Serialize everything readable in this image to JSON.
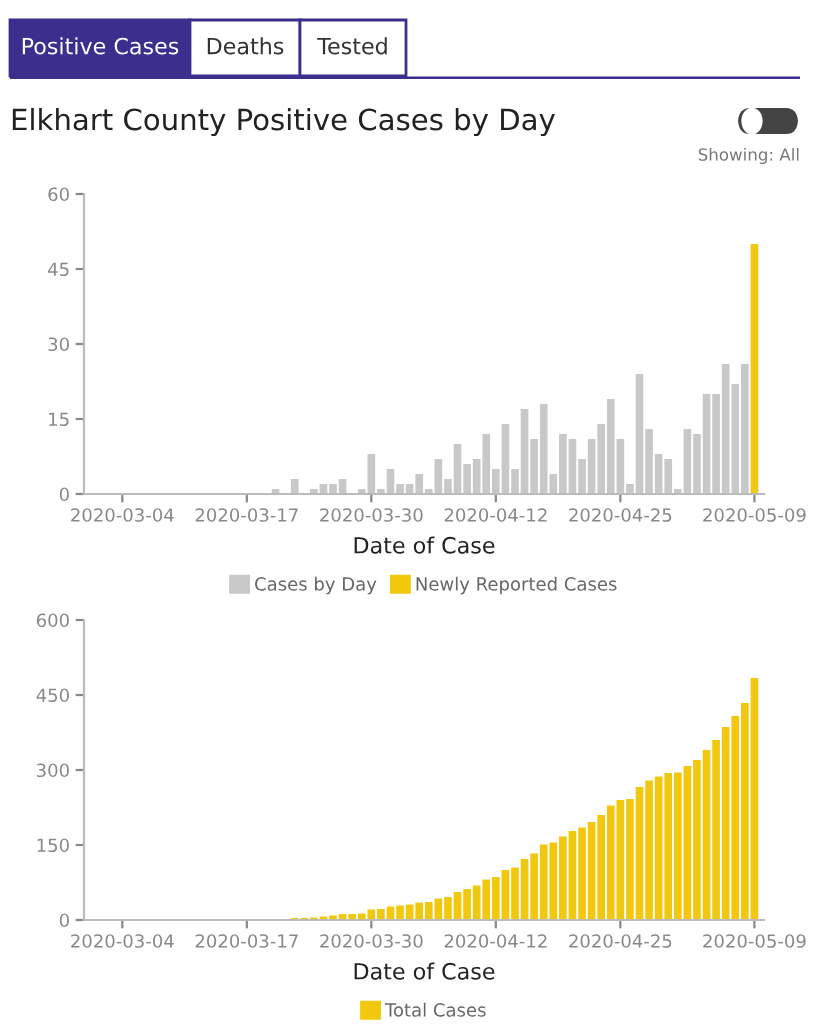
{
  "chart_data": [
    {
      "type": "bar",
      "title": "Elkhart County Positive Cases by Day",
      "annotations": [
        "Positive Cases",
        "Deaths",
        "Tested",
        "Showing: All"
      ],
      "xlabel": "Date of Case",
      "x": [
        "2020-03-20",
        "2020-03-21",
        "2020-03-22",
        "2020-03-23",
        "2020-03-24",
        "2020-03-25",
        "2020-03-26",
        "2020-03-27",
        "2020-03-28",
        "2020-03-29",
        "2020-03-30",
        "2020-03-31",
        "2020-04-01",
        "2020-04-02",
        "2020-04-03",
        "2020-04-04",
        "2020-04-05",
        "2020-04-06",
        "2020-04-07",
        "2020-04-08",
        "2020-04-09",
        "2020-04-10",
        "2020-04-11",
        "2020-04-12",
        "2020-04-13",
        "2020-04-14",
        "2020-04-15",
        "2020-04-16",
        "2020-04-17",
        "2020-04-18",
        "2020-04-19",
        "2020-04-20",
        "2020-04-21",
        "2020-04-22",
        "2020-04-23",
        "2020-04-24",
        "2020-04-25",
        "2020-04-26",
        "2020-04-27",
        "2020-04-28",
        "2020-04-29",
        "2020-04-30",
        "2020-05-01",
        "2020-05-02",
        "2020-05-03",
        "2020-05-04",
        "2020-05-05",
        "2020-05-06",
        "2020-05-07",
        "2020-05-08",
        "2020-05-09"
      ],
      "series": [
        {
          "name": "Cases by Day",
          "color": "#c8c8c8",
          "values": [
            1,
            null,
            3,
            null,
            1,
            2,
            2,
            3,
            null,
            1,
            8,
            1,
            5,
            2,
            2,
            4,
            1,
            7,
            3,
            10,
            6,
            7,
            12,
            5,
            14,
            5,
            17,
            11,
            18,
            4,
            12,
            11,
            7,
            11,
            14,
            19,
            11,
            2,
            24,
            13,
            8,
            7,
            1,
            13,
            12,
            20,
            20,
            26,
            22,
            26,
            null
          ]
        },
        {
          "name": "Newly Reported Cases",
          "color": "#f2c80f",
          "values": [
            null,
            null,
            null,
            null,
            null,
            null,
            null,
            null,
            null,
            null,
            null,
            null,
            null,
            null,
            null,
            null,
            null,
            null,
            null,
            null,
            null,
            null,
            null,
            null,
            null,
            null,
            null,
            null,
            null,
            null,
            null,
            null,
            null,
            null,
            null,
            null,
            null,
            null,
            null,
            null,
            null,
            null,
            null,
            null,
            null,
            null,
            null,
            null,
            null,
            null,
            50
          ]
        }
      ],
      "xlim": [
        "2020-02-29",
        "2020-05-10"
      ],
      "xticks": [
        "2020-03-04",
        "2020-03-17",
        "2020-03-30",
        "2020-04-12",
        "2020-04-25",
        "2020-05-09"
      ],
      "ylim": [
        0,
        60
      ],
      "yticks": [
        0,
        15,
        30,
        45,
        60
      ],
      "grid": false,
      "legend": "bottom"
    },
    {
      "type": "bar",
      "xlabel": "Date of Case",
      "x": [
        "2020-03-20",
        "2020-03-21",
        "2020-03-22",
        "2020-03-23",
        "2020-03-24",
        "2020-03-25",
        "2020-03-26",
        "2020-03-27",
        "2020-03-28",
        "2020-03-29",
        "2020-03-30",
        "2020-03-31",
        "2020-04-01",
        "2020-04-02",
        "2020-04-03",
        "2020-04-04",
        "2020-04-05",
        "2020-04-06",
        "2020-04-07",
        "2020-04-08",
        "2020-04-09",
        "2020-04-10",
        "2020-04-11",
        "2020-04-12",
        "2020-04-13",
        "2020-04-14",
        "2020-04-15",
        "2020-04-16",
        "2020-04-17",
        "2020-04-18",
        "2020-04-19",
        "2020-04-20",
        "2020-04-21",
        "2020-04-22",
        "2020-04-23",
        "2020-04-24",
        "2020-04-25",
        "2020-04-26",
        "2020-04-27",
        "2020-04-28",
        "2020-04-29",
        "2020-04-30",
        "2020-05-01",
        "2020-05-02",
        "2020-05-03",
        "2020-05-04",
        "2020-05-05",
        "2020-05-06",
        "2020-05-07",
        "2020-05-08",
        "2020-05-09"
      ],
      "series": [
        {
          "name": "Total Cases",
          "color": "#f2c80f",
          "values": [
            1,
            1,
            4,
            4,
            5,
            7,
            9,
            12,
            12,
            13,
            21,
            22,
            27,
            29,
            31,
            35,
            36,
            43,
            46,
            56,
            62,
            69,
            81,
            86,
            100,
            105,
            122,
            133,
            151,
            155,
            167,
            178,
            185,
            196,
            210,
            229,
            240,
            242,
            266,
            279,
            287,
            294,
            295,
            308,
            320,
            340,
            360,
            386,
            408,
            434,
            484
          ]
        }
      ],
      "xlim": [
        "2020-02-29",
        "2020-05-10"
      ],
      "xticks": [
        "2020-03-04",
        "2020-03-17",
        "2020-03-30",
        "2020-04-12",
        "2020-04-25",
        "2020-05-09"
      ],
      "ylim": [
        0,
        600
      ],
      "yticks": [
        0,
        150,
        300,
        450,
        600
      ],
      "grid": false,
      "legend": "bottom"
    }
  ]
}
